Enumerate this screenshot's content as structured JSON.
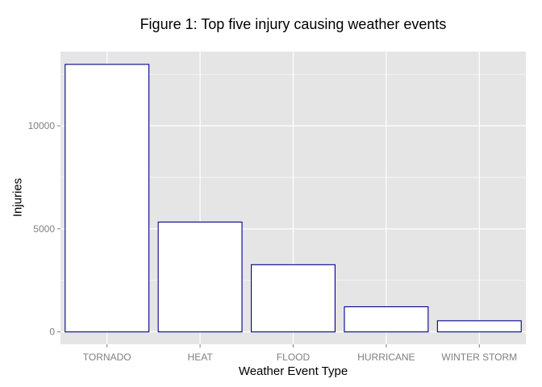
{
  "chart_data": {
    "type": "bar",
    "title": "Figure 1: Top five injury causing weather events",
    "xlabel": "Weather Event Type",
    "ylabel": "Injuries",
    "categories": [
      "TORNADO",
      "HEAT",
      "FLOOD",
      "HURRICANE",
      "WINTER STORM"
    ],
    "values": [
      12980,
      5330,
      3260,
      1220,
      540
    ],
    "ylim": [
      -600,
      13600
    ],
    "yticks": [
      0,
      5000,
      10000
    ],
    "ytick_labels": [
      "0",
      "5000",
      "10000"
    ],
    "grid": true,
    "bar_fill": "#ffffff",
    "bar_stroke": "#00008b",
    "panel_background": "#e5e5e5",
    "grid_color": "#ffffff"
  }
}
